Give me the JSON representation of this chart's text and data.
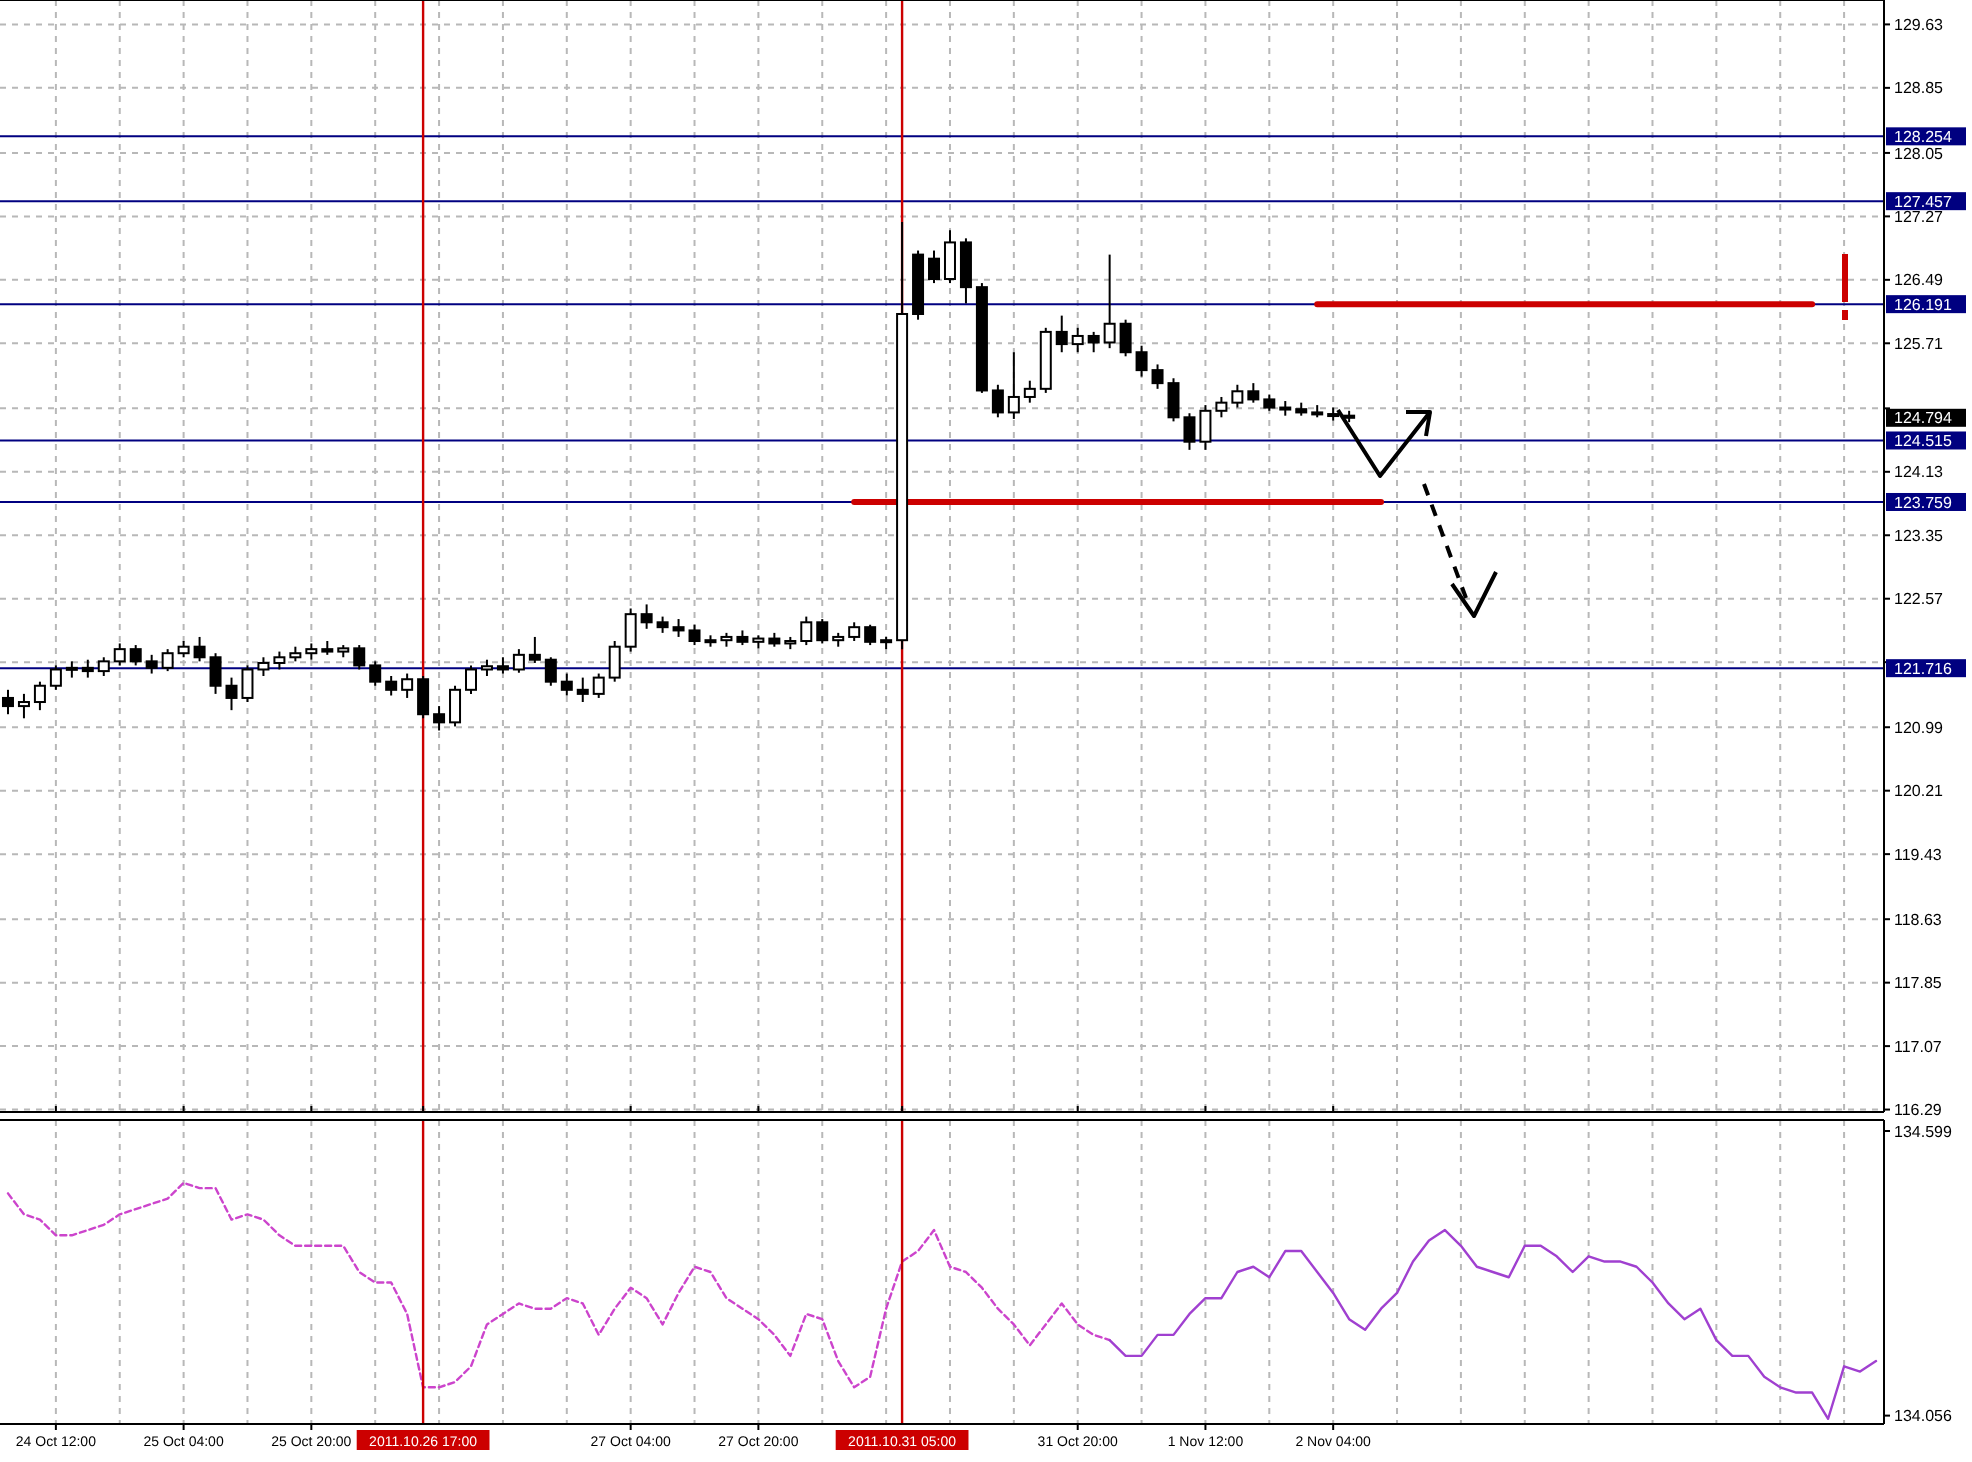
{
  "chart_data": [
    {
      "type": "candlestick",
      "tick_labels": "y",
      "grid": true,
      "categories": [
        null,
        null,
        null,
        "24 Oct 12:00",
        null,
        null,
        null,
        null,
        null,
        null,
        null,
        "25 Oct 04:00",
        null,
        null,
        null,
        null,
        null,
        null,
        null,
        "25 Oct 20:00",
        null,
        null,
        null,
        null,
        null,
        null,
        "2011.10.26 17:00",
        null,
        null,
        null,
        null,
        null,
        null,
        null,
        null,
        null,
        null,
        null,
        null,
        "27 Oct 04:00",
        null,
        null,
        null,
        null,
        null,
        null,
        null,
        "27 Oct 20:00",
        null,
        null,
        null,
        null,
        null,
        null,
        null,
        null,
        "2011.10.31 05:00",
        null,
        null,
        null,
        null,
        null,
        null,
        null,
        null,
        null,
        null,
        "31 Oct 20:00",
        null,
        null,
        null,
        null,
        null,
        null,
        null,
        "1 Nov 12:00",
        null,
        null,
        null,
        null,
        null,
        null,
        null,
        "2 Nov 04:00",
        null,
        null,
        null,
        null,
        null,
        null,
        null,
        null,
        null,
        null,
        null,
        null,
        null,
        null,
        null,
        null,
        null,
        null,
        null,
        null,
        null,
        null,
        null,
        null,
        null,
        null,
        null,
        null,
        null,
        null,
        null,
        null,
        null,
        null
      ],
      "ylim": [
        116.26,
        129.93
      ],
      "yticks": [
        129.63,
        128.85,
        128.05,
        127.27,
        126.49,
        125.71,
        {
          "value": 124.91,
          "label": null
        },
        124.13,
        123.35,
        122.57,
        {
          "value": 121.79,
          "label": null
        },
        120.99,
        120.21,
        119.43,
        118.63,
        117.85,
        117.07,
        116.29
      ],
      "ohlc": [
        [
          121.35,
          121.45,
          121.15,
          121.25
        ],
        [
          121.25,
          121.4,
          121.1,
          121.3
        ],
        [
          121.3,
          121.55,
          121.2,
          121.5
        ],
        [
          121.5,
          121.75,
          121.45,
          121.7
        ],
        [
          121.7,
          121.8,
          121.6,
          121.72
        ],
        [
          121.72,
          121.82,
          121.6,
          121.68
        ],
        [
          121.68,
          121.85,
          121.62,
          121.8
        ],
        [
          121.8,
          122.02,
          121.75,
          121.95
        ],
        [
          121.95,
          122.0,
          121.75,
          121.8
        ],
        [
          121.8,
          121.88,
          121.65,
          121.72
        ],
        [
          121.72,
          121.95,
          121.68,
          121.9
        ],
        [
          121.9,
          122.05,
          121.85,
          121.98
        ],
        [
          121.98,
          122.1,
          121.8,
          121.85
        ],
        [
          121.85,
          121.9,
          121.4,
          121.5
        ],
        [
          121.5,
          121.6,
          121.2,
          121.35
        ],
        [
          121.35,
          121.75,
          121.3,
          121.7
        ],
        [
          121.7,
          121.85,
          121.62,
          121.78
        ],
        [
          121.78,
          121.92,
          121.7,
          121.85
        ],
        [
          121.85,
          121.98,
          121.8,
          121.9
        ],
        [
          121.9,
          122.02,
          121.82,
          121.95
        ],
        [
          121.95,
          122.05,
          121.88,
          121.92
        ],
        [
          121.92,
          122.0,
          121.85,
          121.96
        ],
        [
          121.96,
          122.0,
          121.7,
          121.75
        ],
        [
          121.75,
          121.8,
          121.5,
          121.55
        ],
        [
          121.55,
          121.62,
          121.38,
          121.45
        ],
        [
          121.45,
          121.65,
          121.35,
          121.58
        ],
        [
          121.58,
          121.62,
          121.1,
          121.15
        ],
        [
          121.15,
          121.25,
          120.95,
          121.05
        ],
        [
          121.05,
          121.5,
          121.0,
          121.45
        ],
        [
          121.45,
          121.75,
          121.4,
          121.7
        ],
        [
          121.7,
          121.82,
          121.62,
          121.74
        ],
        [
          121.74,
          121.85,
          121.65,
          121.7
        ],
        [
          121.7,
          121.95,
          121.66,
          121.88
        ],
        [
          121.88,
          122.1,
          121.78,
          121.82
        ],
        [
          121.82,
          121.85,
          121.5,
          121.55
        ],
        [
          121.55,
          121.65,
          121.38,
          121.45
        ],
        [
          121.45,
          121.6,
          121.3,
          121.4
        ],
        [
          121.4,
          121.65,
          121.35,
          121.6
        ],
        [
          121.6,
          122.05,
          121.55,
          121.98
        ],
        [
          121.98,
          122.45,
          121.92,
          122.38
        ],
        [
          122.38,
          122.5,
          122.2,
          122.28
        ],
        [
          122.28,
          122.35,
          122.15,
          122.22
        ],
        [
          122.22,
          122.32,
          122.1,
          122.18
        ],
        [
          122.18,
          122.25,
          122.0,
          122.05
        ],
        [
          122.05,
          122.12,
          121.98,
          122.06
        ],
        [
          122.06,
          122.15,
          121.98,
          122.1
        ],
        [
          122.1,
          122.18,
          122.0,
          122.04
        ],
        [
          122.04,
          122.12,
          121.96,
          122.08
        ],
        [
          122.08,
          122.15,
          121.98,
          122.02
        ],
        [
          122.02,
          122.1,
          121.95,
          122.05
        ],
        [
          122.05,
          122.35,
          122.0,
          122.28
        ],
        [
          122.28,
          122.32,
          122.02,
          122.06
        ],
        [
          122.06,
          122.15,
          121.98,
          122.1
        ],
        [
          122.1,
          122.28,
          122.05,
          122.22
        ],
        [
          122.22,
          122.25,
          122.0,
          122.04
        ],
        [
          122.04,
          122.1,
          121.95,
          122.06
        ],
        [
          122.06,
          127.2,
          121.95,
          126.07
        ],
        [
          126.8,
          126.85,
          126.0,
          126.07
        ],
        [
          126.75,
          126.85,
          126.45,
          126.5
        ],
        [
          126.5,
          127.1,
          126.45,
          126.95
        ],
        [
          126.95,
          127.0,
          126.2,
          126.4
        ],
        [
          126.4,
          126.45,
          125.1,
          125.13
        ],
        [
          125.13,
          125.2,
          124.8,
          124.86
        ],
        [
          124.86,
          125.6,
          124.78,
          125.05
        ],
        [
          125.05,
          125.25,
          124.98,
          125.15
        ],
        [
          125.15,
          125.9,
          125.1,
          125.85
        ],
        [
          125.85,
          126.05,
          125.6,
          125.7
        ],
        [
          125.7,
          125.9,
          125.6,
          125.8
        ],
        [
          125.8,
          125.85,
          125.6,
          125.72
        ],
        [
          125.72,
          126.8,
          125.65,
          125.95
        ],
        [
          125.95,
          126.0,
          125.55,
          125.6
        ],
        [
          125.6,
          125.68,
          125.3,
          125.38
        ],
        [
          125.38,
          125.45,
          125.15,
          125.22
        ],
        [
          125.22,
          125.28,
          124.75,
          124.8
        ],
        [
          124.8,
          124.85,
          124.4,
          124.5
        ],
        [
          124.5,
          124.95,
          124.4,
          124.88
        ],
        [
          124.88,
          125.05,
          124.8,
          124.98
        ],
        [
          124.98,
          125.2,
          124.92,
          125.12
        ],
        [
          125.12,
          125.22,
          124.98,
          125.02
        ],
        [
          125.02,
          125.08,
          124.88,
          124.92
        ],
        [
          124.92,
          125.0,
          124.82,
          124.9
        ],
        [
          124.9,
          124.98,
          124.82,
          124.86
        ],
        [
          124.86,
          124.95,
          124.8,
          124.84
        ],
        [
          124.84,
          124.92,
          124.76,
          124.82
        ],
        [
          124.82,
          124.88,
          124.74,
          124.794
        ],
        null,
        null,
        null,
        null,
        null,
        null,
        null,
        null,
        null,
        null,
        null,
        null,
        null,
        null,
        null,
        null,
        null,
        null,
        null,
        null,
        null,
        null,
        null,
        null,
        null,
        null,
        null,
        null,
        null,
        null,
        null,
        null,
        null
      ],
      "series": [
        {
          "type": "line",
          "color": "#cc0000",
          "values": [
            null,
            null,
            null,
            null,
            null,
            null,
            null,
            null,
            null,
            null,
            null,
            null,
            null,
            null,
            null,
            null,
            null,
            null,
            null,
            null,
            null,
            null,
            null,
            null,
            null,
            null,
            null,
            null,
            null,
            null,
            null,
            null,
            null,
            null,
            null,
            null,
            null,
            null,
            null,
            null,
            null,
            null,
            null,
            null,
            null,
            null,
            null,
            null,
            null,
            null,
            null,
            null,
            null,
            123.76,
            123.76,
            123.76,
            123.76,
            123.76,
            123.76,
            123.76,
            123.76,
            123.76,
            123.76,
            123.76,
            123.76,
            123.76,
            123.76,
            123.76,
            123.76,
            123.76,
            123.76,
            123.76,
            123.76,
            123.76,
            123.76,
            123.76,
            123.76,
            123.76,
            123.76,
            123.76,
            123.76,
            123.76,
            123.76,
            123.76,
            123.76,
            123.76,
            123.76,
            null,
            null,
            null,
            null,
            null,
            null,
            null,
            null,
            null,
            null,
            null,
            null,
            null,
            null,
            null,
            null,
            null,
            null,
            null,
            null,
            null,
            null,
            null,
            null,
            null,
            null,
            null,
            null,
            null,
            null,
            null
          ]
        },
        {
          "type": "line",
          "color": "#cc0000",
          "values": [
            null,
            null,
            null,
            null,
            null,
            null,
            null,
            null,
            null,
            null,
            null,
            null,
            null,
            null,
            null,
            null,
            null,
            null,
            null,
            null,
            null,
            null,
            null,
            null,
            null,
            null,
            null,
            null,
            null,
            null,
            null,
            null,
            null,
            null,
            null,
            null,
            null,
            null,
            null,
            null,
            null,
            null,
            null,
            null,
            null,
            null,
            null,
            null,
            null,
            null,
            null,
            null,
            null,
            null,
            null,
            null,
            null,
            null,
            null,
            null,
            null,
            null,
            null,
            null,
            null,
            null,
            null,
            null,
            null,
            null,
            null,
            null,
            null,
            null,
            null,
            null,
            null,
            null,
            null,
            null,
            null,
            null,
            126.19,
            126.19,
            126.19,
            126.19,
            126.19,
            126.19,
            126.19,
            126.19,
            126.19,
            126.19,
            126.19,
            126.19,
            126.19,
            126.19,
            126.19,
            126.19,
            126.19,
            126.19,
            126.19,
            126.19,
            126.19,
            126.19,
            126.19,
            126.19,
            126.19,
            126.19,
            126.19,
            126.19,
            126.19,
            126.19,
            126.19,
            126.19,
            null,
            null,
            null,
            null
          ]
        }
      ],
      "ref_lines": [
        {
          "axis": "y",
          "value": 128.254,
          "label": "128.254",
          "color": "#000080"
        },
        {
          "axis": "y",
          "value": 127.457,
          "label": "127.457",
          "color": "#000080"
        },
        {
          "axis": "y",
          "value": 126.191,
          "label": "126.191",
          "color": "#000080"
        },
        {
          "axis": "y",
          "value": 124.515,
          "label": "124.515",
          "color": "#000080"
        },
        {
          "axis": "y",
          "value": 123.759,
          "label": "123.759",
          "color": "#000080"
        },
        {
          "axis": "y",
          "value": 121.716,
          "label": "121.716",
          "color": "#000080"
        },
        {
          "axis": "x",
          "value": "2011.10.26 17:00",
          "color": "#cc0000"
        },
        {
          "axis": "x",
          "value": "2011.10.31 05:00",
          "color": "#cc0000"
        }
      ],
      "annotations": [
        "124.794"
      ]
    },
    {
      "type": "line",
      "grid": "x",
      "categories": [
        null,
        null,
        null,
        "24 Oct 12:00",
        null,
        null,
        null,
        null,
        null,
        null,
        null,
        "25 Oct 04:00",
        null,
        null,
        null,
        null,
        null,
        null,
        null,
        "25 Oct 20:00",
        null,
        null,
        null,
        null,
        null,
        null,
        "2011.10.26 17:00",
        null,
        null,
        null,
        null,
        null,
        null,
        null,
        null,
        null,
        null,
        null,
        null,
        "27 Oct 04:00",
        null,
        null,
        null,
        null,
        null,
        null,
        null,
        "27 Oct 20:00",
        null,
        null,
        null,
        null,
        null,
        null,
        null,
        null,
        "2011.10.31 05:00",
        null,
        null,
        null,
        null,
        null,
        null,
        null,
        null,
        null,
        null,
        "31 Oct 20:00",
        null,
        null,
        null,
        null,
        null,
        null,
        null,
        "1 Nov 12:00",
        null,
        null,
        null,
        null,
        null,
        null,
        null,
        "2 Nov 04:00",
        null,
        null,
        null,
        null,
        null,
        null,
        null,
        null,
        null,
        null,
        null,
        null,
        null,
        null,
        null,
        null,
        null,
        null,
        null,
        null,
        null,
        null,
        null,
        null,
        null,
        null,
        null,
        null,
        null,
        null,
        null,
        null,
        null,
        null
      ],
      "ylim": [
        134.04,
        134.62
      ],
      "yticks": [
        134.599,
        134.056
      ],
      "series": [
        {
          "color": "#cc44cc",
          "line_style": "dashed",
          "values": [
            134.48,
            134.44,
            134.43,
            134.4,
            134.4,
            134.41,
            134.42,
            134.44,
            134.45,
            134.46,
            134.47,
            134.5,
            134.49,
            134.49,
            134.43,
            134.44,
            134.43,
            134.4,
            134.38,
            134.38,
            134.38,
            134.38,
            134.33,
            134.31,
            134.31,
            134.25,
            134.11,
            134.11,
            134.12,
            134.15,
            134.23,
            134.25,
            134.27,
            134.26,
            134.26,
            134.28,
            134.27,
            134.21,
            134.26,
            134.3,
            134.28,
            134.23,
            134.29,
            134.34,
            134.33,
            134.28,
            134.26,
            134.24,
            134.21,
            134.17,
            134.25,
            134.24,
            134.16,
            134.11,
            134.13,
            134.26,
            134.35,
            134.37,
            134.41,
            134.34,
            134.33,
            134.3,
            134.26,
            134.23,
            134.19,
            134.23,
            134.27,
            134.23,
            134.21,
            134.2,
            null,
            null,
            null,
            null,
            null,
            null,
            null,
            null,
            null,
            null,
            null,
            null,
            null,
            null,
            null,
            null,
            null,
            null,
            null,
            null,
            null,
            null,
            null,
            null,
            null,
            null,
            null,
            null,
            null,
            null,
            null,
            null,
            null,
            null,
            null,
            null,
            null,
            null,
            null,
            null,
            null,
            null,
            null,
            null,
            null,
            null,
            null,
            null
          ]
        },
        {
          "color": "#a040d0",
          "line_style": "solid",
          "values": [
            null,
            null,
            null,
            null,
            null,
            null,
            null,
            null,
            null,
            null,
            null,
            null,
            null,
            null,
            null,
            null,
            null,
            null,
            null,
            null,
            null,
            null,
            null,
            null,
            null,
            null,
            null,
            null,
            null,
            null,
            null,
            null,
            null,
            null,
            null,
            null,
            null,
            null,
            null,
            null,
            null,
            null,
            null,
            null,
            null,
            null,
            null,
            null,
            null,
            null,
            null,
            null,
            null,
            null,
            null,
            null,
            null,
            null,
            null,
            null,
            null,
            null,
            null,
            null,
            null,
            null,
            null,
            null,
            null,
            134.2,
            134.17,
            134.17,
            134.21,
            134.21,
            134.25,
            134.28,
            134.28,
            134.33,
            134.34,
            134.32,
            134.37,
            134.37,
            134.33,
            134.29,
            134.24,
            134.22,
            134.26,
            134.29,
            134.35,
            134.39,
            134.41,
            134.38,
            134.34,
            134.33,
            134.32,
            134.38,
            134.38,
            134.36,
            134.33,
            134.36,
            134.35,
            134.35,
            134.34,
            134.31,
            134.27,
            134.24,
            134.26,
            134.2,
            134.17,
            134.17,
            134.13,
            134.11,
            134.1,
            134.1,
            134.05,
            134.15,
            134.14,
            134.16
          ]
        }
      ],
      "ref_lines": [
        {
          "axis": "x",
          "value": "2011.10.26 17:00",
          "color": "#cc0000"
        },
        {
          "axis": "x",
          "value": "2011.10.31 05:00",
          "color": "#cc0000"
        }
      ]
    }
  ]
}
